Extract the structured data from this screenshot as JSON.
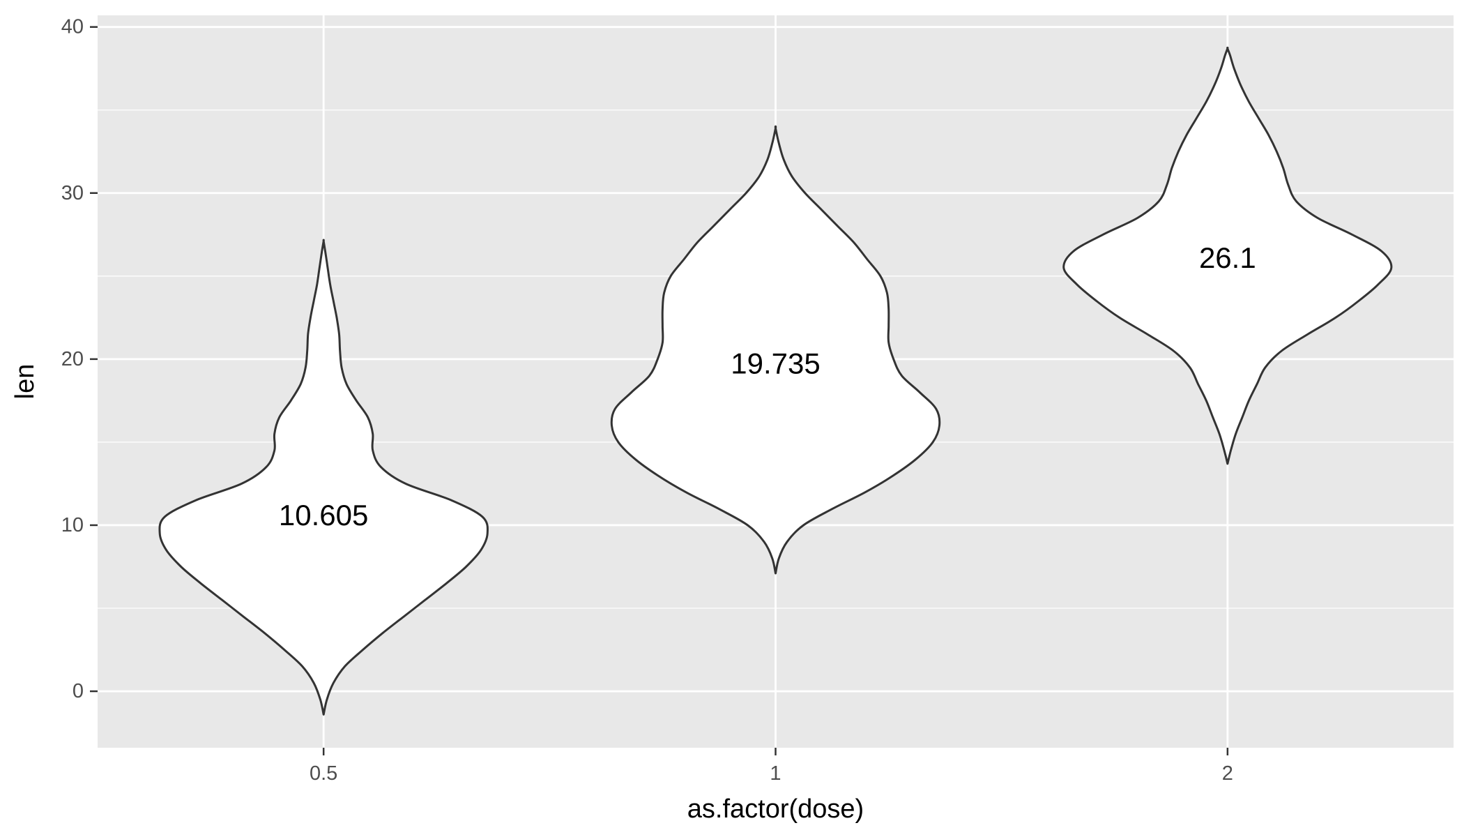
{
  "chart_data": {
    "type": "violin",
    "xlabel": "as.factor(dose)",
    "ylabel": "len",
    "ylim": [
      -3.4,
      40.7
    ],
    "y_ticks": [
      0,
      10,
      20,
      30,
      40
    ],
    "y_tick_labels": [
      "0",
      "10",
      "20",
      "30",
      "40"
    ],
    "grid": true,
    "categories": [
      "0.5",
      "1",
      "2"
    ],
    "labels": [
      "10.605",
      "19.735",
      "26.1"
    ],
    "label_values": [
      10.605,
      19.735,
      26.1
    ],
    "violins": [
      {
        "category": "0.5",
        "label": "10.605",
        "min": -1.4,
        "max": 27.1,
        "density_profile": [
          [
            -1.4,
            0.0
          ],
          [
            -0.5,
            0.02
          ],
          [
            0.5,
            0.06
          ],
          [
            1.5,
            0.13
          ],
          [
            2.5,
            0.24
          ],
          [
            3.5,
            0.36
          ],
          [
            4.5,
            0.49
          ],
          [
            5.5,
            0.62
          ],
          [
            6.5,
            0.75
          ],
          [
            7.5,
            0.87
          ],
          [
            8.5,
            0.96
          ],
          [
            9.5,
            1.0
          ],
          [
            10.5,
            0.97
          ],
          [
            11.5,
            0.78
          ],
          [
            12.5,
            0.5
          ],
          [
            13.5,
            0.35
          ],
          [
            14.5,
            0.3
          ],
          [
            15.5,
            0.3
          ],
          [
            16.5,
            0.27
          ],
          [
            17.5,
            0.2
          ],
          [
            18.5,
            0.14
          ],
          [
            19.5,
            0.11
          ],
          [
            20.5,
            0.1
          ],
          [
            21.5,
            0.095
          ],
          [
            22.5,
            0.08
          ],
          [
            23.5,
            0.06
          ],
          [
            24.5,
            0.04
          ],
          [
            25.5,
            0.025
          ],
          [
            26.5,
            0.01
          ],
          [
            27.1,
            0.0
          ]
        ]
      },
      {
        "category": "1",
        "label": "19.735",
        "min": 7.1,
        "max": 33.9,
        "density_profile": [
          [
            7.1,
            0.0
          ],
          [
            8.0,
            0.02
          ],
          [
            9.0,
            0.07
          ],
          [
            10.0,
            0.17
          ],
          [
            11.0,
            0.35
          ],
          [
            12.0,
            0.55
          ],
          [
            13.0,
            0.72
          ],
          [
            14.0,
            0.86
          ],
          [
            15.0,
            0.96
          ],
          [
            16.0,
            1.0
          ],
          [
            17.0,
            0.98
          ],
          [
            18.0,
            0.88
          ],
          [
            19.0,
            0.77
          ],
          [
            20.0,
            0.72
          ],
          [
            21.0,
            0.69
          ],
          [
            22.0,
            0.69
          ],
          [
            23.0,
            0.69
          ],
          [
            24.0,
            0.68
          ],
          [
            25.0,
            0.64
          ],
          [
            26.0,
            0.56
          ],
          [
            27.0,
            0.48
          ],
          [
            28.0,
            0.38
          ],
          [
            29.0,
            0.28
          ],
          [
            30.0,
            0.18
          ],
          [
            31.0,
            0.1
          ],
          [
            32.0,
            0.05
          ],
          [
            33.0,
            0.02
          ],
          [
            33.9,
            0.0
          ]
        ]
      },
      {
        "category": "2",
        "label": "26.1",
        "min": 13.7,
        "max": 38.7,
        "density_profile": [
          [
            13.7,
            0.0
          ],
          [
            14.5,
            0.02
          ],
          [
            15.5,
            0.05
          ],
          [
            16.5,
            0.09
          ],
          [
            17.5,
            0.13
          ],
          [
            18.5,
            0.18
          ],
          [
            19.5,
            0.23
          ],
          [
            20.5,
            0.33
          ],
          [
            21.5,
            0.49
          ],
          [
            22.5,
            0.66
          ],
          [
            23.5,
            0.8
          ],
          [
            24.5,
            0.92
          ],
          [
            25.5,
            1.0
          ],
          [
            26.5,
            0.94
          ],
          [
            27.5,
            0.76
          ],
          [
            28.5,
            0.55
          ],
          [
            29.5,
            0.42
          ],
          [
            30.5,
            0.37
          ],
          [
            31.5,
            0.34
          ],
          [
            32.5,
            0.3
          ],
          [
            33.5,
            0.25
          ],
          [
            34.5,
            0.19
          ],
          [
            35.5,
            0.13
          ],
          [
            36.5,
            0.08
          ],
          [
            37.5,
            0.04
          ],
          [
            38.3,
            0.015
          ],
          [
            38.7,
            0.0
          ]
        ]
      }
    ],
    "colors": {
      "panel_background": "#e8e8e8",
      "grid": "#ffffff",
      "violin_fill": "#ffffff",
      "violin_stroke": "#333333",
      "tick_text": "#4d4d4d",
      "axis_title": "#000000"
    }
  }
}
